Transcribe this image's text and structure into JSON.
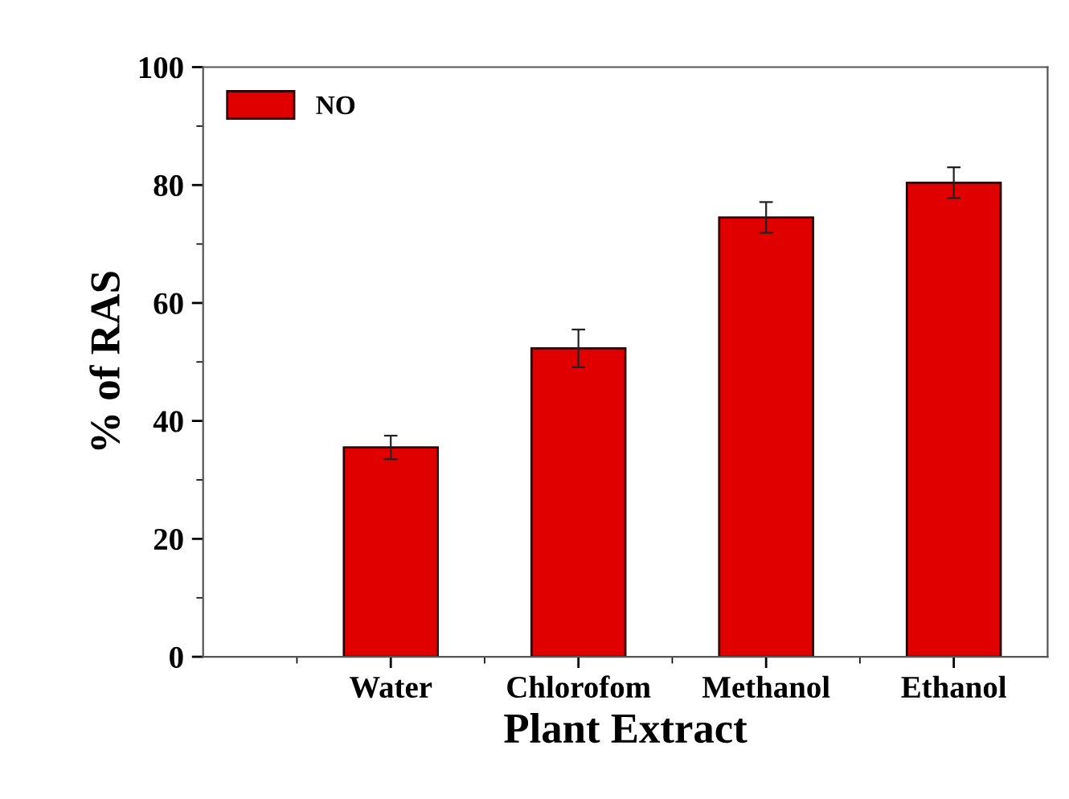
{
  "chart_data": {
    "type": "bar",
    "xlabel": "Plant Extract",
    "ylabel": "% of RAS",
    "categories": [
      "Water",
      "Chlorofom",
      "Methanol",
      "Ethanol"
    ],
    "series": [
      {
        "name": "NO",
        "color": "#e00000",
        "values": [
          35.5,
          52.3,
          74.5,
          80.4
        ],
        "errors": [
          2,
          3.2,
          2.6,
          2.6
        ]
      }
    ],
    "ylim": [
      0,
      100
    ],
    "yticks": [
      0,
      20,
      40,
      60,
      80,
      100
    ],
    "legend": "top left",
    "grid": false
  }
}
